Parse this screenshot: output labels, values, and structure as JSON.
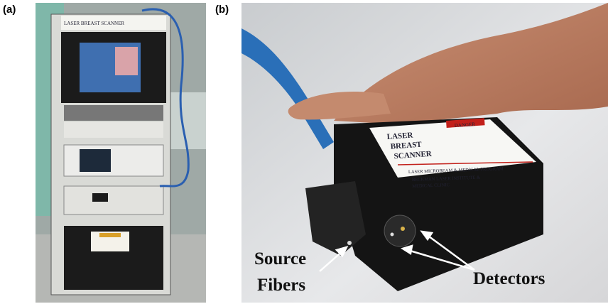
{
  "panels": [
    {
      "label": "(a)",
      "device_label": "LASER BREAST SCANNER"
    },
    {
      "label": "(b)",
      "device_label": {
        "title_lines": [
          "LASER",
          "BREAST",
          "SCANNER"
        ],
        "warning": "DANGER",
        "program": "LASER MICROBEAM & MEDICAL PROGRAM",
        "institute_lines": [
          "BECKMAN LASER INSTITUTE &",
          "MEDICAL CLINIC"
        ]
      },
      "annotations": [
        {
          "lines": [
            "Source",
            "Fibers"
          ]
        },
        {
          "lines": [
            "Detectors"
          ]
        }
      ]
    }
  ]
}
